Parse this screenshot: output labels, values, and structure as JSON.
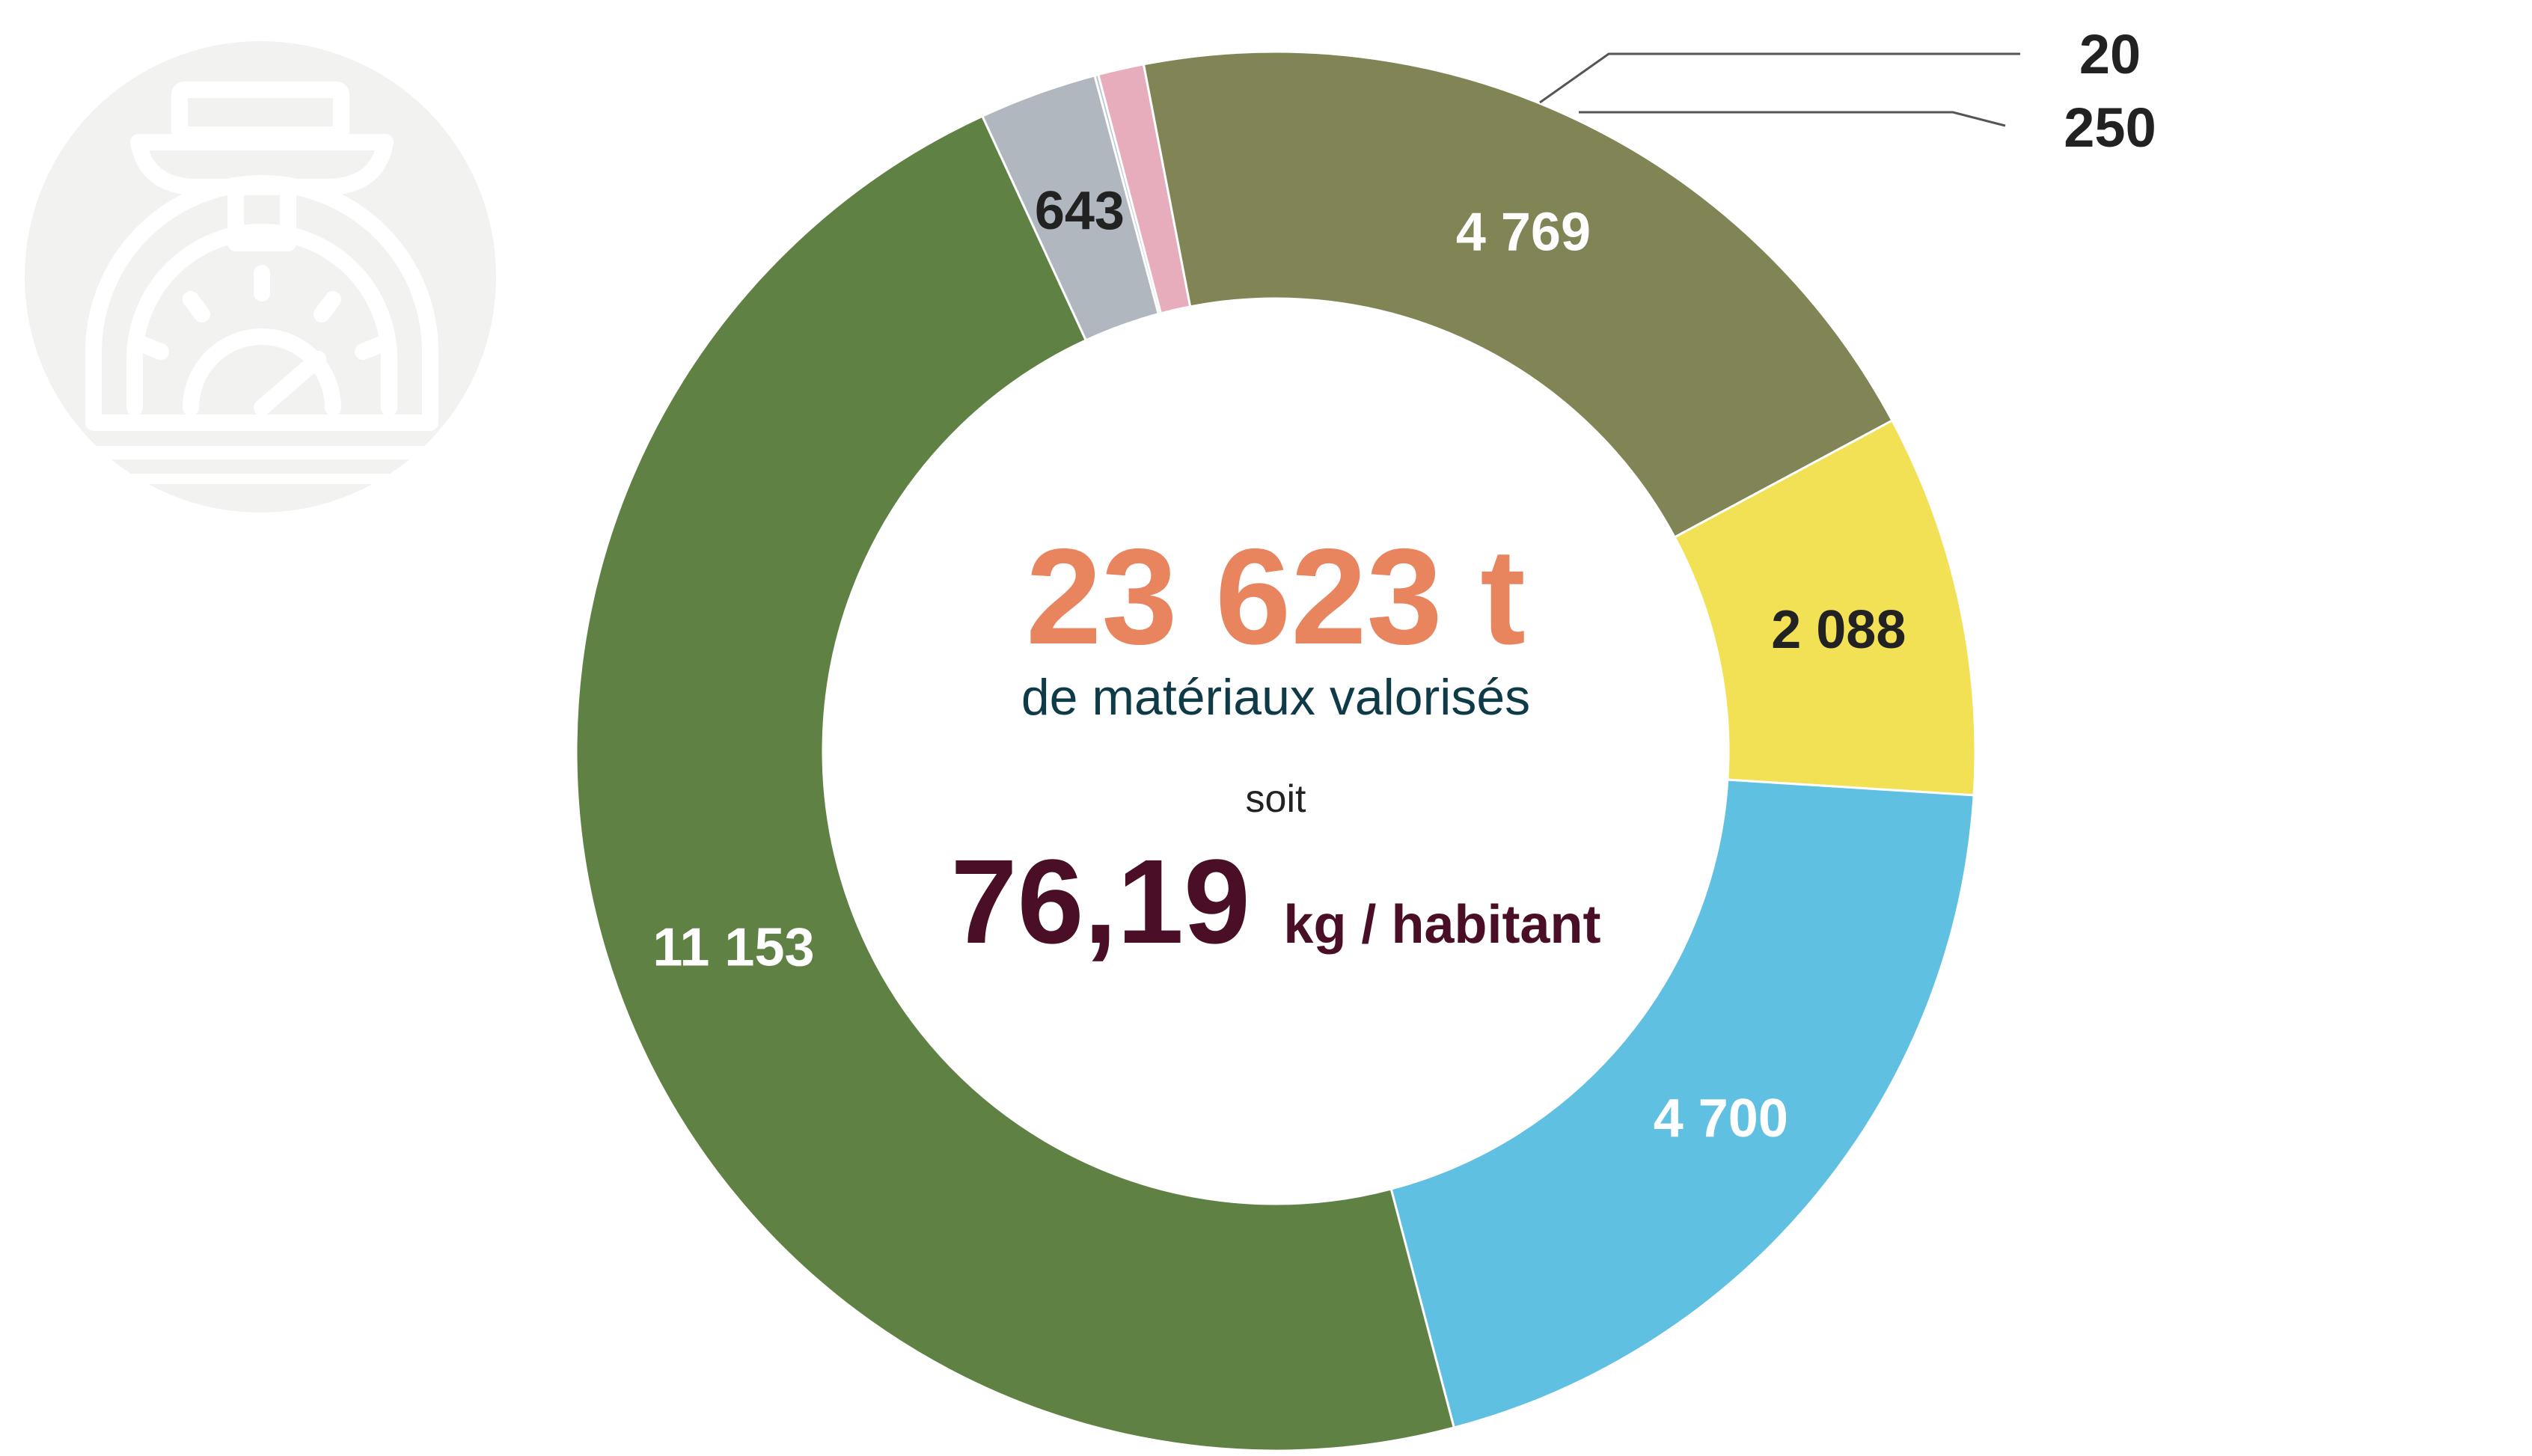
{
  "chart_data": {
    "type": "pie",
    "donut": true,
    "unit": "t",
    "slices": [
      {
        "value": 643,
        "label": "643",
        "color": "#b0b7bf",
        "label_color": "#222222"
      },
      {
        "value": 20,
        "label": "20",
        "color": "#b8c4cf",
        "label_color": "#222222"
      },
      {
        "value": 250,
        "label": "250",
        "color": "#e8adbd",
        "label_color": "#222222"
      },
      {
        "value": 4769,
        "label": "4 769",
        "color": "#818455",
        "label_color": "#ffffff"
      },
      {
        "value": 2088,
        "label": "2 088",
        "color": "#f2e155",
        "label_color": "#222222"
      },
      {
        "value": 4700,
        "label": "4 700",
        "color": "#5fc0e2",
        "label_color": "#ffffff"
      },
      {
        "value": 11153,
        "label": "11 153",
        "color": "#5f8244",
        "label_color": "#ffffff"
      }
    ]
  },
  "center": {
    "total_value": "23 623 t",
    "total_caption": "de matériaux valorisés",
    "connector": "soit",
    "per_capita_value": "76,19",
    "per_capita_unit": "kg / habitant"
  },
  "colors": {
    "total": "#e8845e",
    "caption": "#0f3a47",
    "per_capita": "#4a0f26",
    "icon_bg": "#f2f2f1"
  },
  "icon": {
    "name": "weighing-scale-icon"
  }
}
